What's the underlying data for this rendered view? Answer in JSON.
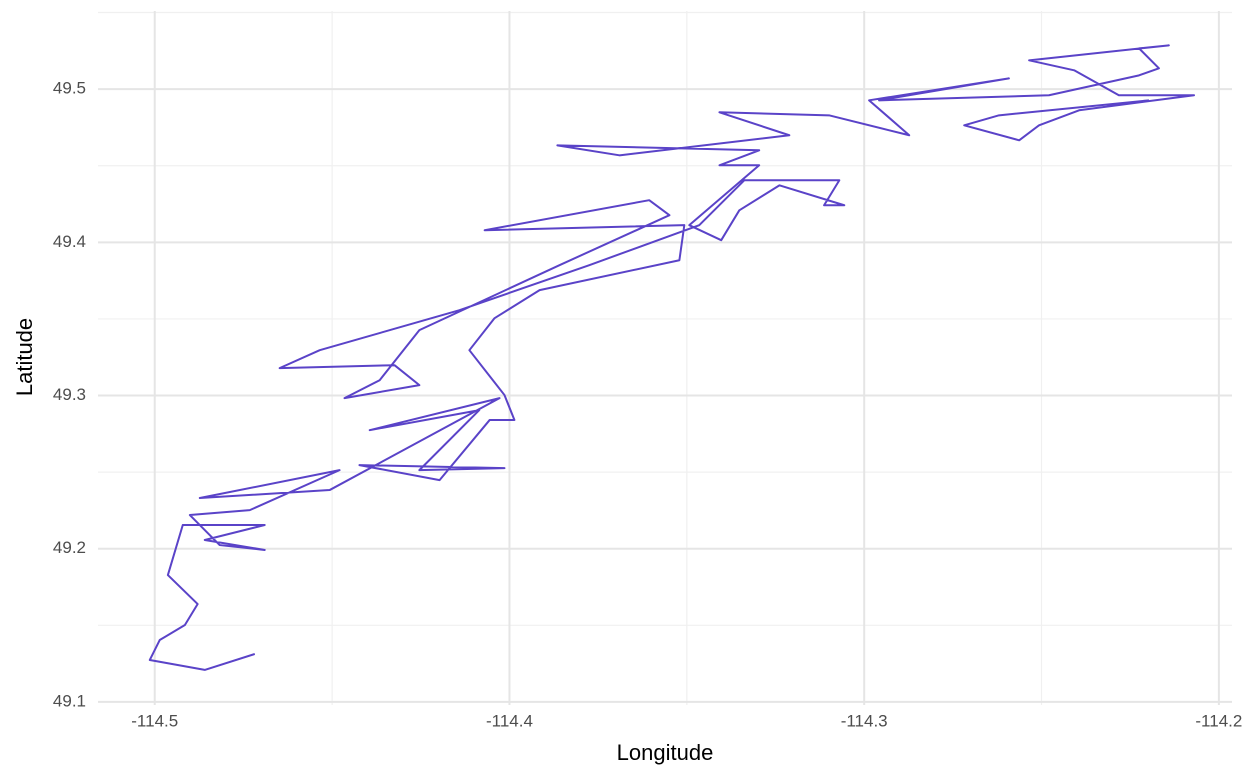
{
  "chart_data": {
    "type": "line",
    "xlabel": "Longitude",
    "ylabel": "Latitude",
    "xlim": [
      -114.516,
      -114.1963
    ],
    "ylim": [
      49.098,
      49.551
    ],
    "xticks": [
      -114.5,
      -114.4,
      -114.3,
      -114.2
    ],
    "yticks": [
      49.1,
      49.2,
      49.3,
      49.4,
      49.5
    ],
    "grid": true,
    "minor_grid": true,
    "series": [
      {
        "color": "#5a43c8",
        "x": [
          -114.4718,
          -114.4859,
          -114.5014,
          -114.4986,
          -114.4915,
          -114.4879,
          -114.4963,
          -114.4921,
          -114.469,
          -114.4859,
          -114.469,
          -114.4817,
          -114.4901,
          -114.4732,
          -114.4479,
          -114.4873,
          -114.4507,
          -114.4028,
          -114.4394,
          -114.4085,
          -114.4254,
          -114.4014,
          -114.4423,
          -114.4197,
          -114.4056,
          -114.3986,
          -114.4014,
          -114.4113,
          -114.4042,
          -114.3915,
          -114.3521,
          -114.3507,
          -114.407,
          -114.3606,
          -114.3549,
          -114.3859,
          -114.4254,
          -114.4366,
          -114.4465,
          -114.4254,
          -114.4324,
          -114.4648,
          -114.4535,
          -114.4141,
          -114.3775,
          -114.3465,
          -114.3338,
          -114.307,
          -114.3113,
          -114.3056,
          -114.3239,
          -114.3352,
          -114.3403,
          -114.3493,
          -114.3296,
          -114.3408,
          -114.3296,
          -114.3865,
          -114.369,
          -114.3211,
          -114.3408,
          -114.3099,
          -114.2873,
          -114.2986,
          -114.2592,
          -114.2958,
          -114.2479,
          -114.2225,
          -114.2169,
          -114.2225,
          -114.2141,
          -114.2535,
          -114.2408,
          -114.2282,
          -114.207,
          -114.2394,
          -114.2507,
          -114.2563,
          -114.2718,
          -114.262,
          -114.2197
        ],
        "values": [
          49.1313,
          49.1209,
          49.1274,
          49.1404,
          49.1502,
          49.1639,
          49.1828,
          49.2155,
          49.2155,
          49.2057,
          49.1992,
          49.2024,
          49.222,
          49.2252,
          49.2513,
          49.2331,
          49.2383,
          49.2983,
          49.2774,
          49.2905,
          49.2513,
          49.2526,
          49.2546,
          49.2448,
          49.284,
          49.284,
          49.3003,
          49.3296,
          49.3505,
          49.3688,
          49.3883,
          49.4112,
          49.4079,
          49.4275,
          49.4177,
          49.3851,
          49.3427,
          49.31,
          49.2983,
          49.3068,
          49.3198,
          49.3179,
          49.3296,
          49.3557,
          49.3851,
          49.4112,
          49.4405,
          49.4405,
          49.4242,
          49.4242,
          49.4372,
          49.4209,
          49.4014,
          49.4112,
          49.4503,
          49.4503,
          49.4601,
          49.4633,
          49.4568,
          49.4699,
          49.4849,
          49.4829,
          49.4699,
          49.4927,
          49.507,
          49.4927,
          49.496,
          49.509,
          49.5136,
          49.5266,
          49.5286,
          49.5188,
          49.5123,
          49.496,
          49.496,
          49.4862,
          49.4764,
          49.4666,
          49.4764,
          49.4829,
          49.4927
        ]
      }
    ]
  }
}
